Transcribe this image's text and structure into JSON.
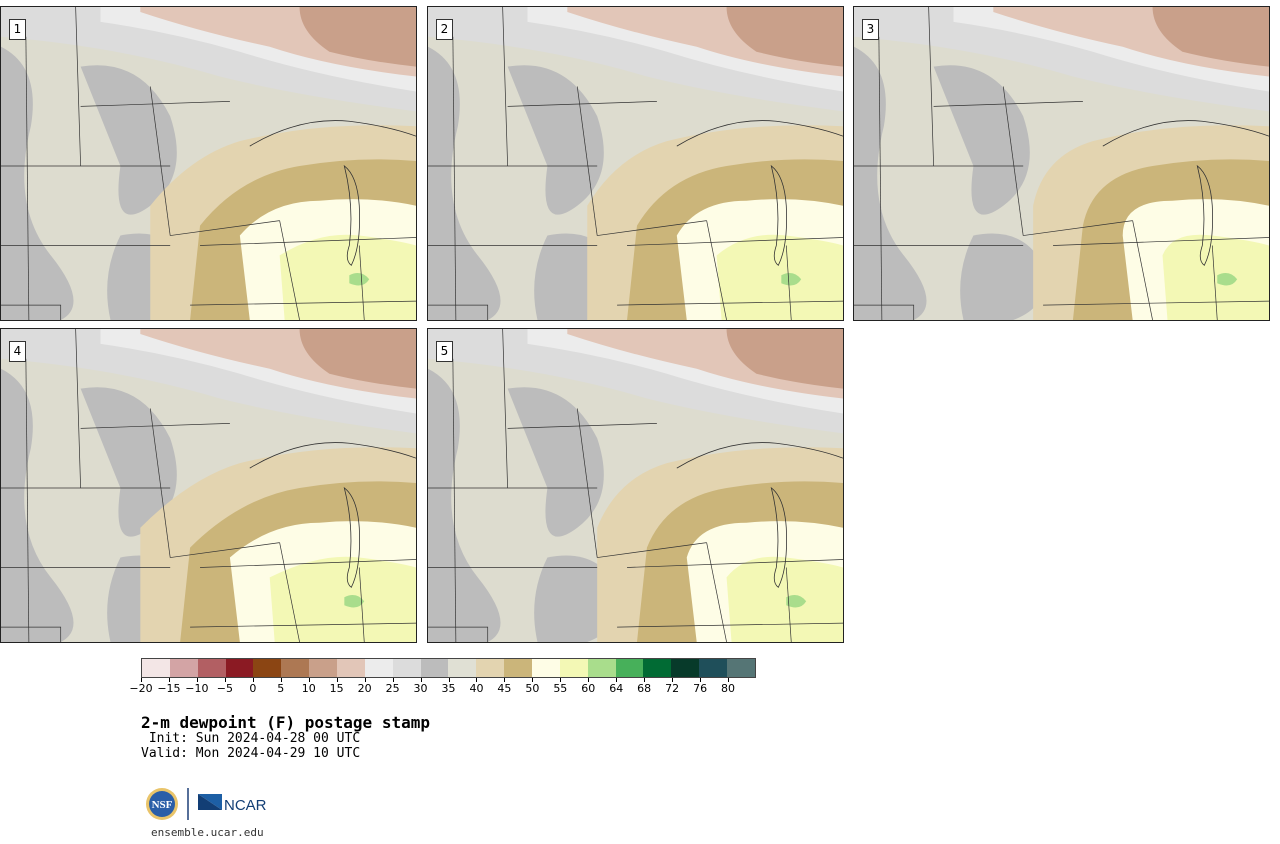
{
  "panels": [
    {
      "label": "1"
    },
    {
      "label": "2"
    },
    {
      "label": "3"
    },
    {
      "label": "4"
    },
    {
      "label": "5"
    }
  ],
  "colorbar": {
    "colors": [
      "#f3e6e6",
      "#d3a4a5",
      "#b25f63",
      "#8b1a23",
      "#8b4513",
      "#ad7853",
      "#c9a08a",
      "#e2c6b8",
      "#ececec",
      "#dcdcdc",
      "#bcbcbc",
      "#e0e0d4",
      "#e3d4b0",
      "#cbb57a",
      "#fefde6",
      "#f3f8b5",
      "#a9dd8c",
      "#47b05a",
      "#016b34",
      "#073a2a",
      "#1f4f5a",
      "#557575"
    ],
    "tick_labels": [
      "−20",
      "−15",
      "−10",
      "−5",
      "0",
      "5",
      "10",
      "15",
      "20",
      "25",
      "30",
      "35",
      "40",
      "45",
      "50",
      "55",
      "60",
      "64",
      "68",
      "72",
      "76",
      "80"
    ]
  },
  "title": "2-m dewpoint (F) postage stamp",
  "init": " Init: Sun 2024-04-28 00 UTC",
  "valid": "Valid: Mon 2024-04-29 10 UTC",
  "logos": {
    "nsf": "NSF",
    "ncar": "NCAR"
  },
  "url": "ensemble.ucar.edu"
}
